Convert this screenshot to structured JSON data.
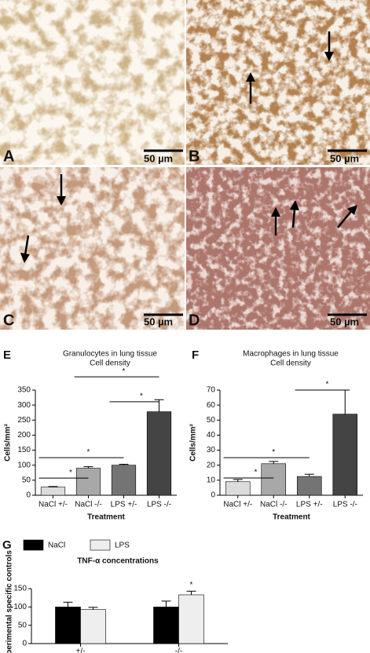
{
  "panels": [
    {
      "label": "A",
      "scale": "50 µm"
    },
    {
      "label": "B",
      "scale": "50 µm"
    },
    {
      "label": "C",
      "scale": "50 µm"
    },
    {
      "label": "D",
      "scale": "50 µm"
    }
  ],
  "chart_data": [
    {
      "type": "bar",
      "panel_label": "E",
      "title": "Granulocytes in lung tissue",
      "subtitle": "Cell density",
      "x_label": "Treatment",
      "y_label": "Cells/mm²",
      "categories": [
        "NaCl +/-",
        "NaCl -/-",
        "LPS +/-",
        "LPS -/-"
      ],
      "values": [
        27,
        90,
        100,
        278
      ],
      "errors": [
        2,
        5,
        3,
        40
      ],
      "colors": [
        "#dcdcdc",
        "#a8a8a8",
        "#747474",
        "#444444"
      ],
      "ylim": [
        0,
        350
      ],
      "yticks": [
        0,
        50,
        100,
        150,
        200,
        250,
        300,
        350
      ],
      "significance": [
        {
          "from": 0,
          "to": 1,
          "y": 57,
          "label": "*"
        },
        {
          "from": 0,
          "to": 2,
          "y": 125,
          "label": "*"
        },
        {
          "from": 2,
          "to": 3,
          "y": 311,
          "label": "*"
        },
        {
          "from": 1,
          "to": 3,
          "y": 394,
          "label": "*"
        }
      ]
    },
    {
      "type": "bar",
      "panel_label": "F",
      "title": "Macrophages in lung tissue",
      "subtitle": "Cell density",
      "x_label": "Treatment",
      "y_label": "Cells/mm²",
      "categories": [
        "NaCl +/-",
        "NaCl -/-",
        "LPS +/-",
        "LPS -/-"
      ],
      "values": [
        9,
        21,
        12.5,
        54
      ],
      "errors": [
        1.5,
        1.5,
        1.5,
        16
      ],
      "colors": [
        "#dcdcdc",
        "#a8a8a8",
        "#747474",
        "#444444"
      ],
      "ylim": [
        0,
        70
      ],
      "yticks": [
        0,
        10,
        20,
        30,
        40,
        50,
        60,
        70
      ],
      "significance": [
        {
          "from": 0,
          "to": 1,
          "y": 11.5,
          "label": "*"
        },
        {
          "from": 0,
          "to": 2,
          "y": 25,
          "label": "*"
        },
        {
          "from": 2,
          "to": 3,
          "y": 70,
          "label": "*"
        }
      ]
    },
    {
      "type": "grouped_bar",
      "panel_label": "G",
      "title": "TNF-α concentrations",
      "y_label": "% of experimental specific controls",
      "categories": [
        "+/-",
        "-/-"
      ],
      "series": [
        {
          "name": "NaCl",
          "color": "#000000",
          "values": [
            100,
            100
          ],
          "errors": [
            13,
            16
          ]
        },
        {
          "name": "LPS",
          "color": "#eeeeee",
          "values": [
            93,
            133
          ],
          "errors": [
            6,
            10
          ]
        }
      ],
      "ylim": [
        0,
        150
      ],
      "yticks": [
        0,
        50,
        100,
        150
      ],
      "significance": [
        {
          "category": 1,
          "series": 1,
          "label": "*"
        }
      ]
    }
  ]
}
